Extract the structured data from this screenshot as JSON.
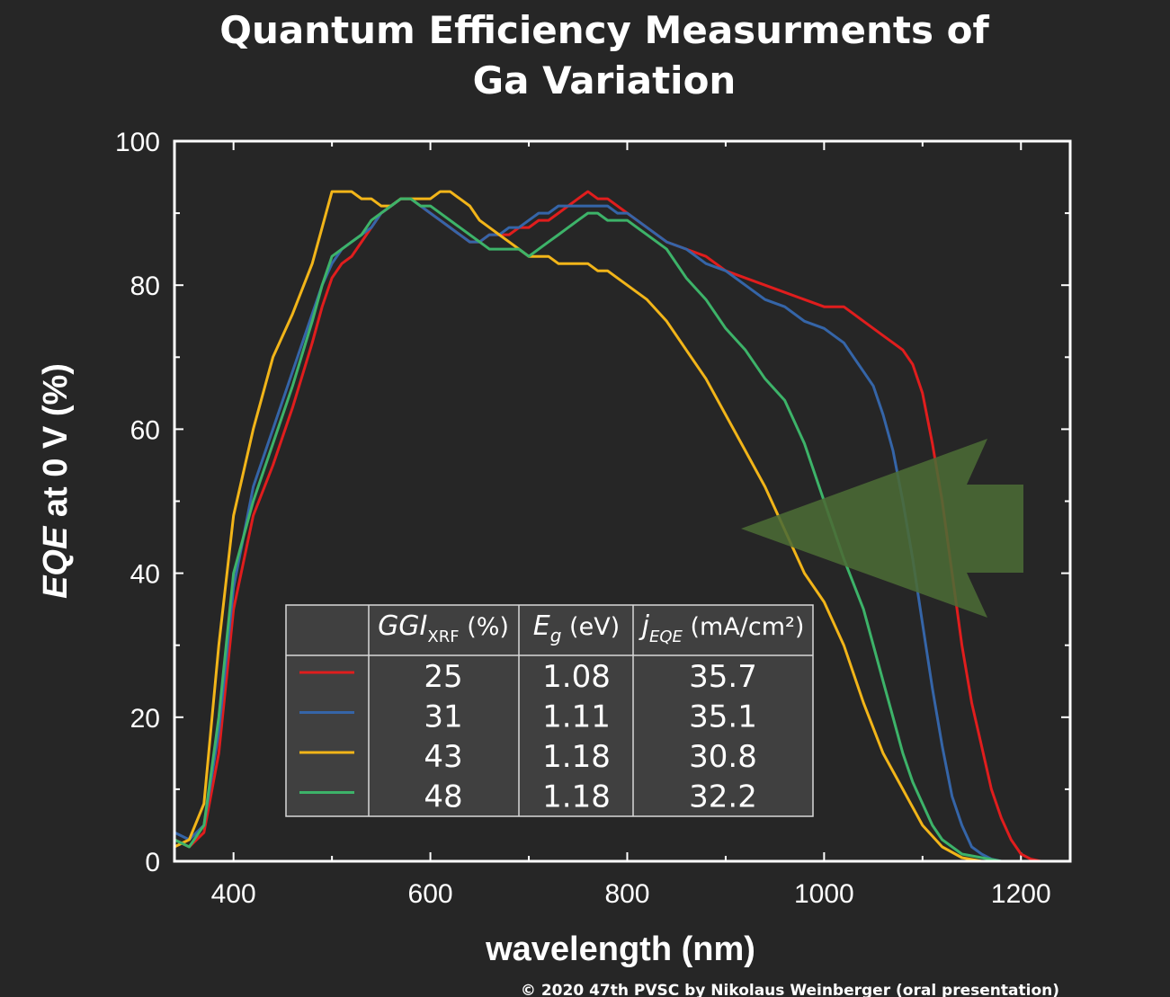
{
  "page": {
    "background": "#262626",
    "copyright": "© 2020 47th PVSC  by Nikolaus Weinberger (oral presentation)"
  },
  "chart_data": {
    "type": "line",
    "title_lines": [
      "Quantum Efficiency Measurments of",
      "Ga Variation"
    ],
    "xlabel": "wavelength (nm)",
    "ylabel_italic": "EQE",
    "ylabel_rest": " at 0 V (%)",
    "xlim": [
      340,
      1250
    ],
    "ylim": [
      0,
      100
    ],
    "xticks": [
      400,
      600,
      800,
      1000,
      1200
    ],
    "yticks": [
      0,
      20,
      40,
      60,
      80,
      100
    ],
    "grid": false,
    "annotation": {
      "shape": "arrow",
      "color": "#4b6b35",
      "direction": "left",
      "points_to_wavelength": 920
    },
    "series": [
      {
        "ggi": "25",
        "eg": "1.08",
        "jeqe": "35.7",
        "color": "#e01d1d",
        "x": [
          340,
          355,
          370,
          385,
          400,
          420,
          440,
          460,
          480,
          490,
          500,
          510,
          520,
          530,
          540,
          550,
          560,
          570,
          580,
          590,
          600,
          610,
          620,
          630,
          640,
          650,
          660,
          670,
          680,
          690,
          700,
          710,
          720,
          730,
          740,
          750,
          760,
          770,
          780,
          790,
          800,
          820,
          840,
          860,
          880,
          900,
          920,
          940,
          960,
          980,
          1000,
          1010,
          1020,
          1030,
          1040,
          1050,
          1060,
          1070,
          1080,
          1090,
          1100,
          1110,
          1120,
          1130,
          1140,
          1150,
          1160,
          1170,
          1180,
          1190,
          1200,
          1210,
          1220,
          1250
        ],
        "y": [
          3,
          2,
          4,
          15,
          35,
          48,
          55,
          63,
          72,
          77,
          81,
          83,
          84,
          86,
          88,
          90,
          91,
          92,
          92,
          91,
          90,
          89,
          88,
          87,
          86,
          86,
          87,
          87,
          87,
          88,
          88,
          89,
          89,
          90,
          91,
          92,
          93,
          92,
          92,
          91,
          90,
          88,
          86,
          85,
          84,
          82,
          81,
          80,
          79,
          78,
          77,
          77,
          77,
          76,
          75,
          74,
          73,
          72,
          71,
          69,
          65,
          58,
          50,
          40,
          30,
          22,
          16,
          10,
          6,
          3,
          1,
          0.3,
          0,
          0
        ]
      },
      {
        "ggi": "31",
        "eg": "1.11",
        "jeqe": "35.1",
        "color": "#3565a8",
        "x": [
          340,
          355,
          370,
          385,
          400,
          420,
          440,
          460,
          480,
          490,
          500,
          510,
          520,
          530,
          540,
          550,
          560,
          570,
          580,
          590,
          600,
          610,
          620,
          630,
          640,
          650,
          660,
          670,
          680,
          690,
          700,
          710,
          720,
          730,
          740,
          750,
          760,
          770,
          780,
          790,
          800,
          820,
          840,
          860,
          880,
          900,
          920,
          940,
          960,
          980,
          1000,
          1010,
          1020,
          1030,
          1040,
          1050,
          1060,
          1070,
          1080,
          1090,
          1100,
          1110,
          1120,
          1130,
          1140,
          1150,
          1160,
          1170,
          1180,
          1190,
          1250
        ],
        "y": [
          4,
          3,
          5,
          18,
          38,
          52,
          60,
          68,
          76,
          80,
          83,
          85,
          86,
          87,
          88,
          90,
          91,
          92,
          92,
          91,
          90,
          89,
          88,
          87,
          86,
          86,
          87,
          87,
          88,
          88,
          89,
          90,
          90,
          91,
          91,
          91,
          91,
          91,
          91,
          90,
          90,
          88,
          86,
          85,
          83,
          82,
          80,
          78,
          77,
          75,
          74,
          73,
          72,
          70,
          68,
          66,
          62,
          57,
          50,
          42,
          33,
          24,
          16,
          9,
          5,
          2,
          1,
          0.3,
          0,
          0,
          0
        ]
      },
      {
        "ggi": "43",
        "eg": "1.18",
        "jeqe": "30.8",
        "color": "#f2b519",
        "x": [
          340,
          355,
          370,
          385,
          400,
          420,
          440,
          460,
          480,
          490,
          500,
          510,
          520,
          530,
          540,
          550,
          560,
          570,
          580,
          590,
          600,
          610,
          620,
          630,
          640,
          650,
          660,
          670,
          680,
          690,
          700,
          710,
          720,
          730,
          740,
          750,
          760,
          770,
          780,
          790,
          800,
          820,
          840,
          860,
          880,
          900,
          920,
          940,
          960,
          980,
          1000,
          1020,
          1040,
          1060,
          1080,
          1100,
          1120,
          1140,
          1160,
          1180,
          1200,
          1250
        ],
        "y": [
          2,
          3,
          8,
          30,
          48,
          60,
          70,
          76,
          83,
          88,
          93,
          93,
          93,
          92,
          92,
          91,
          91,
          92,
          92,
          92,
          92,
          93,
          93,
          92,
          91,
          89,
          88,
          87,
          86,
          85,
          84,
          84,
          84,
          83,
          83,
          83,
          83,
          82,
          82,
          81,
          80,
          78,
          75,
          71,
          67,
          62,
          57,
          52,
          46,
          40,
          36,
          30,
          22,
          15,
          10,
          5,
          2,
          0.5,
          0,
          0,
          0,
          0
        ]
      },
      {
        "ggi": "48",
        "eg": "1.18",
        "jeqe": "32.2",
        "color": "#3db369",
        "x": [
          340,
          355,
          370,
          385,
          400,
          420,
          440,
          460,
          480,
          490,
          500,
          510,
          520,
          530,
          540,
          550,
          560,
          570,
          580,
          590,
          600,
          610,
          620,
          630,
          640,
          650,
          660,
          670,
          680,
          690,
          700,
          710,
          720,
          730,
          740,
          750,
          760,
          770,
          780,
          790,
          800,
          820,
          840,
          860,
          880,
          900,
          920,
          940,
          960,
          980,
          1000,
          1020,
          1040,
          1050,
          1060,
          1070,
          1080,
          1090,
          1100,
          1110,
          1120,
          1130,
          1140,
          1160,
          1180,
          1250
        ],
        "y": [
          3,
          2,
          5,
          20,
          40,
          50,
          58,
          66,
          75,
          80,
          84,
          85,
          86,
          87,
          89,
          90,
          91,
          92,
          92,
          91,
          91,
          90,
          89,
          88,
          87,
          86,
          85,
          85,
          85,
          85,
          84,
          85,
          86,
          87,
          88,
          89,
          90,
          90,
          89,
          89,
          89,
          87,
          85,
          81,
          78,
          74,
          71,
          67,
          64,
          58,
          50,
          42,
          35,
          30,
          25,
          20,
          15,
          11,
          8,
          5,
          3,
          2,
          1,
          0.5,
          0,
          0
        ]
      }
    ],
    "legend_table": {
      "headers": [
        {
          "main": "GGI",
          "sub": "XRF",
          "rest": " (%)",
          "italic": true
        },
        {
          "main": "E",
          "sub": "g",
          "rest": " (eV)",
          "italic": true
        },
        {
          "main": "j",
          "sub": "EQE",
          "rest": " (mA/cm²)",
          "italic": true
        }
      ]
    }
  }
}
